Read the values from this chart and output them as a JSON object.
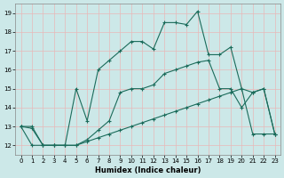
{
  "xlabel": "Humidex (Indice chaleur)",
  "x": [
    0,
    1,
    2,
    3,
    4,
    5,
    6,
    7,
    8,
    9,
    10,
    11,
    12,
    13,
    14,
    15,
    16,
    17,
    18,
    19,
    20,
    21,
    22,
    23
  ],
  "line1": [
    13,
    13,
    12,
    12,
    12,
    15,
    13.3,
    16,
    16.5,
    17,
    17.5,
    17.5,
    17.1,
    18.5,
    18.5,
    18.4,
    19.1,
    16.8,
    16.8,
    17.2,
    15,
    14.8,
    15,
    12.6
  ],
  "line2": [
    13,
    12.9,
    12,
    12,
    12,
    12,
    12.3,
    12.8,
    13.3,
    14.8,
    15,
    15,
    15.2,
    15.8,
    16,
    16.2,
    16.4,
    16.5,
    15,
    15,
    14,
    14.8,
    15,
    12.6
  ],
  "line3": [
    13,
    12,
    12,
    12,
    12,
    12,
    12.2,
    12.4,
    12.6,
    12.8,
    13,
    13.2,
    13.4,
    13.6,
    13.8,
    14,
    14.2,
    14.4,
    14.6,
    14.8,
    15,
    12.6,
    12.6,
    12.6
  ],
  "line_color": "#1a6b5a",
  "bg_color": "#cce8e8",
  "grid_color": "#e8b8b8",
  "ylim": [
    11.5,
    19.5
  ],
  "xlim": [
    -0.5,
    23.5
  ],
  "yticks": [
    12,
    13,
    14,
    15,
    16,
    17,
    18,
    19
  ],
  "xticks": [
    0,
    1,
    2,
    3,
    4,
    5,
    6,
    7,
    8,
    9,
    10,
    11,
    12,
    13,
    14,
    15,
    16,
    17,
    18,
    19,
    20,
    21,
    22,
    23
  ]
}
